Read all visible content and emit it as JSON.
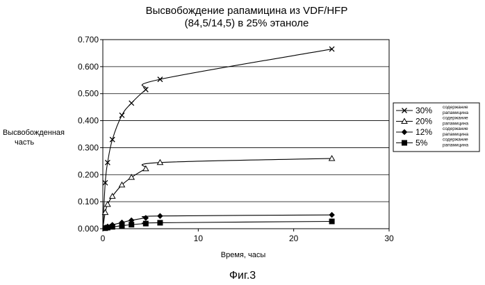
{
  "chart_data": {
    "type": "line",
    "title_line1": "Высвобождение рапамицина из VDF/HFP",
    "title_line2": "(84,5/14,5) в 25% этаноле",
    "xlabel": "Время, часы",
    "ylabel_line1": "Высвобожденная",
    "ylabel_line2": "часть",
    "xlim": [
      0,
      30
    ],
    "ylim": [
      0,
      0.7
    ],
    "x_ticks": [
      "0",
      "10",
      "20",
      "30"
    ],
    "y_ticks": [
      "0.000",
      "0.100",
      "0.200",
      "0.300",
      "0.400",
      "0.500",
      "0.600",
      "0.700"
    ],
    "grid": "horizontal",
    "legend_position": "right",
    "series": [
      {
        "name": "30%",
        "sublabel_line1": "содержание",
        "sublabel_line2": "рапамицина",
        "marker": "x",
        "x": [
          0,
          0.25,
          0.5,
          1,
          2,
          3,
          4.5,
          6,
          24
        ],
        "y": [
          0,
          0.17,
          0.245,
          0.33,
          0.42,
          0.465,
          0.515,
          0.553,
          0.665
        ]
      },
      {
        "name": "20%",
        "sublabel_line1": "содержание",
        "sublabel_line2": "рапамицина",
        "marker": "triangle",
        "x": [
          0,
          0.25,
          0.5,
          1,
          2,
          3,
          4.5,
          6,
          24
        ],
        "y": [
          0,
          0.06,
          0.09,
          0.12,
          0.162,
          0.19,
          0.222,
          0.245,
          0.26
        ]
      },
      {
        "name": "12%",
        "sublabel_line1": "содержание",
        "sublabel_line2": "рапамицина",
        "marker": "diamond",
        "x": [
          0,
          0.25,
          0.5,
          1,
          2,
          3,
          4.5,
          6,
          24
        ],
        "y": [
          0,
          0.004,
          0.008,
          0.014,
          0.023,
          0.031,
          0.04,
          0.047,
          0.051
        ]
      },
      {
        "name": "5%",
        "sublabel_line1": "содержание",
        "sublabel_line2": "рапамицина",
        "marker": "square",
        "x": [
          0,
          0.25,
          0.5,
          1,
          2,
          3,
          4.5,
          6,
          24
        ],
        "y": [
          0,
          0.002,
          0.004,
          0.007,
          0.011,
          0.015,
          0.019,
          0.022,
          0.027
        ]
      }
    ]
  },
  "figure_caption": "Фиг.3"
}
